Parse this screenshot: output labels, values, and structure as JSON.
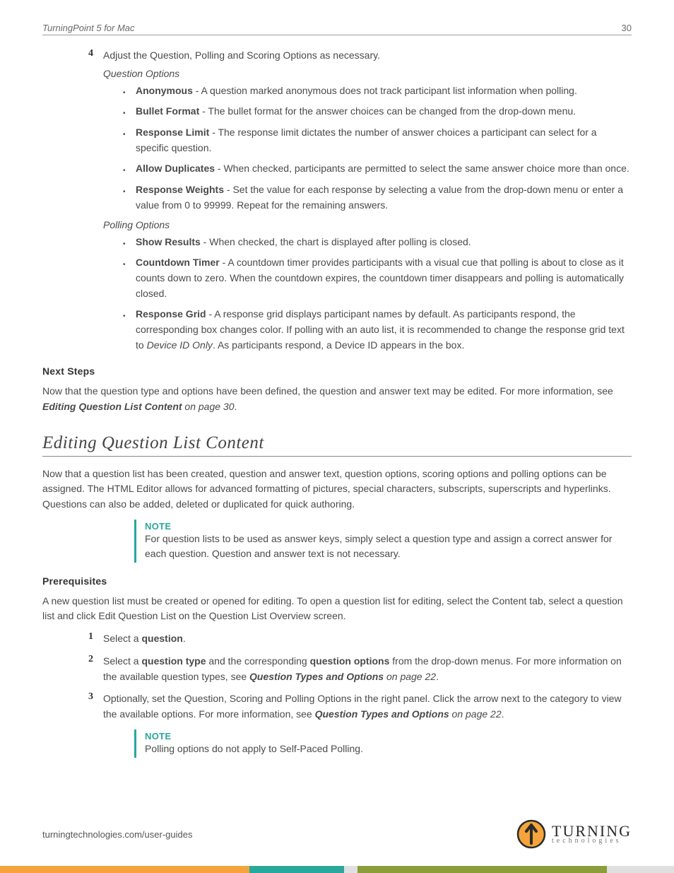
{
  "colors": {
    "teal": "#2aa79b",
    "orange": "#f4a43a",
    "olive": "#8a9e3a",
    "gray_stripe": "#e0e0e0",
    "text": "#4a4a4a"
  },
  "header": {
    "title": "TurningPoint 5 for Mac",
    "page_number": "30"
  },
  "step4": {
    "num": "4",
    "intro": "Adjust the Question, Polling and Scoring Options as necessary.",
    "question_options_label": "Question Options",
    "question_options": [
      {
        "term": "Anonymous",
        "desc": " - A question marked anonymous does not track participant list information when polling."
      },
      {
        "term": "Bullet Format",
        "desc": " - The bullet format for the answer choices can be changed from the drop-down menu."
      },
      {
        "term": "Response Limit",
        "desc": " - The response limit dictates the number of answer choices a participant can select for a specific question."
      },
      {
        "term": "Allow Duplicates",
        "desc": " - When checked, participants are permitted to select the same answer choice more than once."
      },
      {
        "term": "Response Weights",
        "desc": " - Set the value for each response by selecting a value from the drop-down menu or enter a value from 0 to 99999. Repeat for the remaining answers."
      }
    ],
    "polling_options_label": "Polling Options",
    "polling_options": [
      {
        "term": "Show Results",
        "desc": " - When checked, the chart is displayed after polling is closed."
      },
      {
        "term": "Countdown Timer",
        "desc": " - A countdown timer provides participants with a visual cue that polling is about to close as it counts down to zero. When the countdown expires, the countdown timer disappears and polling is automatically closed."
      },
      {
        "term": "Response Grid",
        "desc_pre": " - A response grid displays participant names by default. As participants respond, the corresponding box changes color. If polling with an auto list, it is recommended to change the response grid text to ",
        "desc_em": "Device ID Only",
        "desc_post": ". As participants respond, a Device ID appears in the box."
      }
    ]
  },
  "next_steps": {
    "label": "Next Steps",
    "body_pre": "Now that the question type and options have been defined, the question and answer text may be edited. For more information, see ",
    "xref": "Editing Question List Content",
    "xref_tail": " on page 30",
    "period": "."
  },
  "topic": {
    "title": "Editing Question List Content",
    "intro": "Now that a question list has been created, question and answer text, question options, scoring options and polling options can be assigned. The HTML Editor allows for advanced formatting of pictures, special characters, subscripts, superscripts and hyperlinks. Questions can also be added, deleted or duplicated for quick authoring.",
    "note1": {
      "label": "NOTE",
      "text": "For question lists to be used as answer keys, simply select a question type and assign a correct answer for each question. Question and answer text is not necessary."
    },
    "prereq_label": "Prerequisites",
    "prereq_text": "A new question list must be created or opened for editing. To open a question list for editing, select the Content tab, select a question list and click Edit Question List on the Question List Overview screen.",
    "steps": [
      {
        "num": "1",
        "pre": "Select a ",
        "b1": "question",
        "post": "."
      },
      {
        "num": "2",
        "pre": "Select a ",
        "b1": "question type",
        "mid1": " and the corresponding ",
        "b2": "question options",
        "mid2": " from the drop-down menus. For more information on the available question types, see ",
        "xref": "Question Types and Options",
        "xref_tail": " on page 22",
        "post": "."
      },
      {
        "num": "3",
        "pre": "Optionally, set the Question, Scoring and Polling Options in the right panel. Click the arrow next to the category to view the available options. For more information, see ",
        "xref": "Question Types and Options",
        "xref_tail": " on page 22",
        "post": "."
      }
    ],
    "note2": {
      "label": "NOTE",
      "text": "Polling options do not apply to Self-Paced Polling."
    }
  },
  "footer": {
    "url": "turningtechnologies.com/user-guides",
    "logo_big": "TURNING",
    "logo_small": "technologies"
  },
  "stripe_widths": [
    "37%",
    "14%",
    "2%",
    "37%",
    "10%"
  ],
  "stripe_colors": [
    "#f4a43a",
    "#2aa79b",
    "#e0e0e0",
    "#8a9e3a",
    "#e0e0e0"
  ]
}
